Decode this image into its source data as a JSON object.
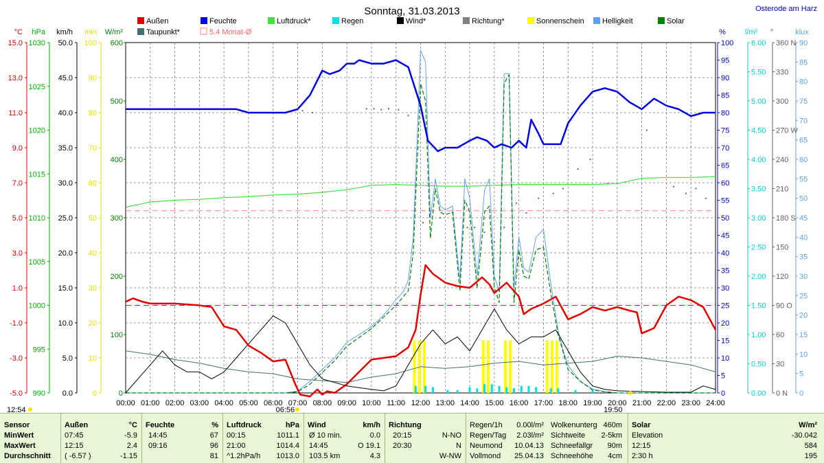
{
  "title": "Sonntag, 31.03.2013",
  "location": "Osterode am Harz",
  "chart_data": {
    "type": "line",
    "title": "Sonntag, 31.03.2013",
    "x_ticks": [
      "00:00",
      "01:00",
      "02:00",
      "03:00",
      "04:00",
      "05:00",
      "06:00",
      "07:00",
      "08:00",
      "09:00",
      "10:00",
      "11:00",
      "12:00",
      "13:00",
      "14:00",
      "15:00",
      "16:00",
      "17:00",
      "18:00",
      "19:00",
      "20:00",
      "21:00",
      "22:00",
      "23:00",
      "24:00"
    ],
    "x_markers": {
      "sunrise": "06:56",
      "sunset": "19:50",
      "moment": "12:54"
    },
    "axes": {
      "temp": {
        "unit": "°C",
        "color": "#e00000",
        "ticks": [
          "15.0",
          "13.0",
          "11.0",
          "9.0",
          "7.0",
          "5.0",
          "3.0",
          "1.0",
          "-1.0",
          "-3.0",
          "-5.0"
        ],
        "ylim": [
          -5,
          15
        ]
      },
      "press": {
        "unit": "hPa",
        "color": "#00b000",
        "ticks": [
          "1030",
          "1025",
          "1020",
          "1015",
          "1010",
          "1005",
          "1000",
          "995",
          "990"
        ],
        "ylim": [
          990,
          1030
        ]
      },
      "wind": {
        "unit": "km/h",
        "color": "#000000",
        "ticks": [
          "50.0",
          "45.0",
          "40.0",
          "35.0",
          "30.0",
          "25.0",
          "20.0",
          "15.0",
          "10.0",
          "5.0",
          "0.0"
        ],
        "ylim": [
          0,
          50
        ]
      },
      "sun": {
        "unit": "min",
        "color": "#e0e000",
        "ticks": [
          "100",
          "90",
          "80",
          "70",
          "60",
          "50",
          "40",
          "30",
          "20",
          "10",
          "0"
        ],
        "ylim": [
          0,
          100
        ]
      },
      "solar": {
        "unit": "W/m²",
        "color": "#008000",
        "ticks": [
          "600",
          "500",
          "400",
          "300",
          "200",
          "100",
          "0"
        ],
        "ylim": [
          0,
          600
        ]
      },
      "hum": {
        "unit": "%",
        "color": "#0000c0",
        "ticks": [
          "100",
          "95",
          "90",
          "85",
          "80",
          "75",
          "70",
          "65",
          "60",
          "55",
          "50",
          "45",
          "40",
          "35",
          "30",
          "25",
          "20",
          "15",
          "10",
          "5",
          "0"
        ],
        "ylim": [
          0,
          100
        ]
      },
      "rain": {
        "unit": "l/m²",
        "color": "#00d0d0",
        "ticks": [
          "6.00",
          "5.50",
          "5.00",
          "4.50",
          "4.00",
          "3.50",
          "3.00",
          "2.50",
          "2.00",
          "1.50",
          "1.00",
          "0.50",
          "0.00"
        ],
        "ylim": [
          0,
          6
        ]
      },
      "dir": {
        "unit": "°",
        "color": "#606060",
        "ticks": [
          "360 N",
          "330",
          "300",
          "270 W",
          "240",
          "210",
          "180 S",
          "150",
          "120",
          "90  O",
          "60",
          "30",
          "0   N"
        ],
        "ylim": [
          0,
          360
        ]
      },
      "lux": {
        "unit": "klux",
        "color": "#60a0e0",
        "ticks": [
          "90",
          "85",
          "80",
          "75",
          "70",
          "65",
          "60",
          "55",
          "50",
          "45",
          "40",
          "35",
          "30",
          "25",
          "20",
          "15",
          "10",
          "5",
          "0"
        ],
        "ylim": [
          0,
          90
        ]
      }
    },
    "legend": [
      {
        "name": "Außen",
        "color": "#e00000"
      },
      {
        "name": "Feuchte",
        "color": "#0000e0"
      },
      {
        "name": "Luftdruck*",
        "color": "#40e040"
      },
      {
        "name": "Regen",
        "color": "#00e0e0"
      },
      {
        "name": "Wind*",
        "color": "#000000"
      },
      {
        "name": "Richtung*",
        "color": "#808080"
      },
      {
        "name": "Sonnenschein",
        "color": "#ffff00"
      },
      {
        "name": "Helligkeit",
        "color": "#60a0ff"
      },
      {
        "name": "Solar",
        "color": "#008000"
      },
      {
        "name": "Taupunkt*",
        "color": "#407070"
      },
      {
        "name": "5.4 Monat-Ø",
        "color": "#ff8080"
      }
    ],
    "series": [
      {
        "name": "Außen",
        "axis": "temp",
        "color": "#e00000",
        "x": [
          0,
          0.3,
          0.7,
          1,
          1.5,
          2,
          3,
          3.5,
          4,
          4.5,
          5,
          5.5,
          6,
          6.5,
          6.9,
          7.1,
          7.5,
          7.8,
          8,
          8.2,
          8.5,
          9,
          9.5,
          10,
          10.5,
          11,
          11.5,
          11.8,
          12,
          12.2,
          12.5,
          13,
          13.5,
          14,
          14.5,
          14.8,
          15,
          15.5,
          16,
          16.2,
          16.5,
          17,
          17.5,
          18,
          18.5,
          19,
          19.5,
          20,
          20.5,
          20.8,
          21,
          21.5,
          22,
          22.5,
          23,
          23.5,
          24
        ],
        "y": [
          0.2,
          0.4,
          0.2,
          0.1,
          0.1,
          0.1,
          0,
          -0.1,
          -1.2,
          -1.4,
          -2.3,
          -2.7,
          -3.2,
          -3.1,
          -4.5,
          -5.1,
          -5.2,
          -4.8,
          -5.1,
          -4.9,
          -5.0,
          -4.5,
          -3.8,
          -3.1,
          -3.0,
          -2.9,
          -2.4,
          -1.4,
          0.6,
          2.3,
          1.8,
          1.3,
          1.1,
          1.0,
          1.6,
          1.2,
          0.7,
          1.3,
          0.5,
          -0.5,
          -0.2,
          0.1,
          0.5,
          -0.8,
          -0.5,
          -0.1,
          -0.3,
          -0.1,
          -0.3,
          -0.4,
          -1.6,
          -1.3,
          0.0,
          0.5,
          0.3,
          -0.1,
          -1.4
        ]
      },
      {
        "name": "Feuchte",
        "axis": "hum",
        "color": "#0000e0",
        "x": [
          0,
          1,
          2,
          3,
          4,
          4.5,
          5,
          5.5,
          6,
          6.5,
          7,
          7.5,
          8,
          8.3,
          8.7,
          9,
          9.3,
          9.5,
          10,
          10.5,
          11,
          11.5,
          12,
          12.3,
          12.7,
          13,
          13.5,
          14,
          14.3,
          14.7,
          15,
          15.3,
          15.7,
          16,
          16.3,
          16.5,
          16.8,
          17,
          17.3,
          17.7,
          18,
          18.5,
          19,
          19.5,
          20,
          20.5,
          21,
          21.5,
          22,
          22.5,
          23,
          23.5,
          24
        ],
        "y": [
          81,
          81,
          81,
          81,
          81,
          81,
          80,
          80,
          80,
          80,
          81,
          85,
          92,
          91,
          92,
          94,
          94,
          95,
          94,
          94,
          95,
          93,
          82,
          72,
          69,
          70,
          70,
          72,
          73,
          72,
          70,
          71,
          70,
          72,
          70,
          78,
          74,
          71,
          71,
          71,
          77,
          82,
          86,
          87,
          86,
          83,
          81,
          84,
          82,
          81,
          79,
          80,
          80
        ]
      },
      {
        "name": "Luftdruck*",
        "axis": "press",
        "color": "#40e040",
        "x": [
          0,
          1,
          2,
          3,
          4,
          5,
          6,
          7,
          8,
          9,
          10,
          11,
          12,
          13,
          14,
          15,
          16,
          17,
          18,
          19,
          20,
          21,
          22,
          23,
          24
        ],
        "y": [
          1011.2,
          1011.8,
          1012.0,
          1012.1,
          1012.3,
          1012.4,
          1012.6,
          1012.7,
          1012.9,
          1013.2,
          1013.7,
          1013.8,
          1013.7,
          1013.6,
          1013.6,
          1013.7,
          1013.8,
          1013.8,
          1013.8,
          1013.8,
          1013.9,
          1014.5,
          1014.6,
          1014.6,
          1014.7
        ]
      },
      {
        "name": "Wind*",
        "axis": "wind",
        "color": "#000000",
        "x": [
          0,
          0.5,
          1,
          1.5,
          2,
          2.5,
          3,
          3.5,
          4,
          4.5,
          5,
          5.5,
          6,
          6.5,
          7,
          7.5,
          8,
          9,
          10,
          10.5,
          11,
          11.5,
          12,
          12.5,
          13,
          13.5,
          14,
          14.5,
          15,
          15.5,
          16,
          16.5,
          17,
          17.5,
          18,
          18.5,
          19,
          19.5,
          20,
          21,
          22,
          23,
          23.5,
          24
        ],
        "y": [
          0,
          2,
          4,
          6,
          4,
          3,
          3,
          2,
          3,
          5,
          7,
          9,
          11,
          10,
          7,
          4,
          2,
          1,
          0.5,
          0.3,
          1,
          4,
          7,
          9,
          7,
          8,
          6,
          9,
          12,
          9,
          7,
          8,
          8,
          9,
          6,
          3,
          1,
          0.5,
          0.3,
          0.2,
          0.1,
          0.1,
          1,
          0.5
        ]
      },
      {
        "name": "Solar",
        "axis": "solar",
        "color": "#008000",
        "x": [
          0,
          6.5,
          7,
          7.5,
          8,
          8.5,
          9,
          9.5,
          10,
          10.5,
          11,
          11.3,
          11.5,
          11.7,
          12,
          12.2,
          12.4,
          12.6,
          12.8,
          13,
          13.3,
          13.6,
          13.8,
          14,
          14.3,
          14.6,
          14.8,
          15,
          15.2,
          15.4,
          15.6,
          15.8,
          16,
          16.2,
          16.4,
          16.7,
          17,
          17.3,
          17.6,
          17.8,
          18,
          18.5,
          19,
          19.5,
          20,
          24
        ],
        "y": [
          0,
          0,
          2,
          15,
          35,
          55,
          80,
          95,
          110,
          130,
          150,
          165,
          175,
          240,
          530,
          500,
          265,
          350,
          310,
          305,
          310,
          175,
          330,
          310,
          180,
          310,
          320,
          180,
          155,
          530,
          545,
          155,
          245,
          200,
          195,
          245,
          250,
          170,
          100,
          70,
          40,
          20,
          5,
          2,
          0,
          0
        ]
      },
      {
        "name": "Helligkeit",
        "axis": "lux",
        "color": "#60a0ff",
        "x": [
          0,
          6.5,
          7,
          7.5,
          8,
          8.5,
          9,
          9.5,
          10,
          10.5,
          11,
          11.3,
          11.5,
          11.7,
          12,
          12.2,
          12.4,
          12.6,
          12.8,
          13,
          13.3,
          13.6,
          13.8,
          14,
          14.3,
          14.6,
          14.8,
          15,
          15.2,
          15.4,
          15.6,
          15.8,
          16,
          16.2,
          16.4,
          16.7,
          17,
          17.3,
          17.6,
          17.8,
          18,
          18.5,
          19,
          19.5,
          20,
          24
        ],
        "y": [
          0,
          0,
          0.5,
          3,
          6,
          9,
          13,
          15,
          17,
          20,
          24,
          26,
          29,
          40,
          88,
          85,
          45,
          55,
          48,
          47,
          48,
          29,
          55,
          50,
          30,
          52,
          55,
          30,
          26,
          82,
          82,
          27,
          40,
          32,
          31,
          40,
          42,
          28,
          16,
          11,
          7,
          3,
          1,
          0.3,
          0,
          0
        ]
      },
      {
        "name": "Taupunkt*",
        "axis": "temp",
        "color": "#407070",
        "x": [
          0,
          1,
          2,
          3,
          4,
          5,
          6,
          7,
          8,
          9,
          10,
          11,
          12,
          13,
          14,
          15,
          16,
          17,
          18,
          19,
          20,
          21,
          22,
          23,
          24
        ],
        "y": [
          -2.6,
          -2.8,
          -3.1,
          -3.3,
          -3.6,
          -3.8,
          -3.9,
          -4.2,
          -4.3,
          -4.4,
          -4.1,
          -3.9,
          -3.5,
          -3.6,
          -3.5,
          -3.3,
          -3.2,
          -3.4,
          -3.3,
          -3.2,
          -2.9,
          -3.0,
          -3.2,
          -3.4,
          -3.8
        ]
      }
    ],
    "sunshine_bars": {
      "axis": "sun",
      "x": [
        11.75,
        11.95,
        12.15,
        14.55,
        14.75,
        15.45,
        15.65,
        17.15,
        17.35,
        17.55
      ],
      "y": [
        15,
        15,
        15,
        15,
        15,
        15,
        15,
        15,
        15,
        15
      ]
    },
    "rain_bars": {
      "axis": "rain",
      "x": [
        11.8,
        12.2,
        12.5,
        13.1,
        13.5,
        14.0,
        14.3,
        14.6,
        14.9,
        15.2,
        15.5,
        15.8,
        16.1,
        16.4,
        16.7,
        17.3,
        17.6,
        18.3,
        19.0
      ],
      "y": [
        0.12,
        0.12,
        0.1,
        0.05,
        0.05,
        0.1,
        0.08,
        0.15,
        0.15,
        0.12,
        0.1,
        0.08,
        0.12,
        0.12,
        0.1,
        0.08,
        0.08,
        0.05,
        0.05
      ]
    },
    "direction_dots": {
      "axis": "dir",
      "x": [
        7.2,
        7.6,
        9.8,
        10.1,
        10.4,
        10.7,
        11.1,
        11.5,
        12.1,
        12.8,
        13.4,
        13.9,
        14.2,
        14.6,
        15.0,
        15.4,
        15.9,
        16.3,
        16.8,
        17.4,
        17.8,
        18.4,
        18.9,
        19.6,
        21.2,
        22.3,
        22.8,
        23.2,
        23.6
      ],
      "y": [
        290,
        288,
        292,
        292,
        291,
        292,
        291,
        285,
        175,
        180,
        160,
        170,
        170,
        165,
        155,
        170,
        195,
        185,
        200,
        205,
        210,
        230,
        240,
        215,
        270,
        212,
        205,
        210,
        200
      ]
    },
    "reference_lines": [
      {
        "label": "5.4 Monat-Ø",
        "axis": "temp",
        "value": 5.4,
        "color": "#ff8080"
      },
      {
        "axis": "temp",
        "value": 0,
        "color": "#c000c0"
      }
    ]
  },
  "footer": {
    "headers": {
      "sensor": "Sensor",
      "aussen": "Außen",
      "aussen_unit": "°C",
      "feuchte": "Feuchte",
      "feuchte_unit": "%",
      "luftdruck": "Luftdruck",
      "luftdruck_unit": "hPa",
      "wind": "Wind",
      "wind_unit": "km/h",
      "richtung": "Richtung",
      "solar": "Solar",
      "solar_unit": "W/m²"
    },
    "rows": [
      {
        "label": "MinWert",
        "a_time": "07:45",
        "a_val": "-5.9",
        "f_time": "14:45",
        "f_val": "67",
        "l_time": "00:15",
        "l_val": "1011.1",
        "w_time": "Ø 10 min.",
        "w_val": "0.0",
        "r_time": "20:15",
        "r_val": "N-NO"
      },
      {
        "label": "MaxWert",
        "a_time": "12:15",
        "a_val": "2.4",
        "f_time": "09:16",
        "f_val": "96",
        "l_time": "21:00",
        "l_val": "1014.4",
        "w_time": "14:45",
        "w_val": "O 19.1",
        "r_time": "20:30",
        "r_val": "N"
      },
      {
        "label": "Durchschnitt",
        "a_time": "( -6.57 )",
        "a_val": "-1.15",
        "f_time": "",
        "f_val": "81",
        "l_time": "^1.2hPa/h",
        "l_val": "1013.0",
        "w_time": "103.5 km",
        "w_val": "4.3",
        "r_time": "",
        "r_val": "W-NW"
      }
    ],
    "misc": [
      {
        "k": "Regen/1h",
        "v": "0.00l/m²"
      },
      {
        "k": "Regen/Tag",
        "v": "2.03l/m²"
      },
      {
        "k": "Neumond",
        "v": "10.04.13"
      },
      {
        "k": "Vollmond",
        "v": "25.04.13"
      }
    ],
    "misc2": [
      {
        "k": "Wolkenunterg",
        "v": "460m"
      },
      {
        "k": "Sichtweite",
        "v": "2-5km"
      },
      {
        "k": "Schneefallgr",
        "v": "90m"
      },
      {
        "k": "Schneehöhe",
        "v": "4cm"
      }
    ],
    "solar_rows": [
      {
        "k": "Elevation",
        "v": "-30.042"
      },
      {
        "k": "12:15",
        "v": "584"
      },
      {
        "k": "2:30 h",
        "v": "195"
      }
    ]
  }
}
